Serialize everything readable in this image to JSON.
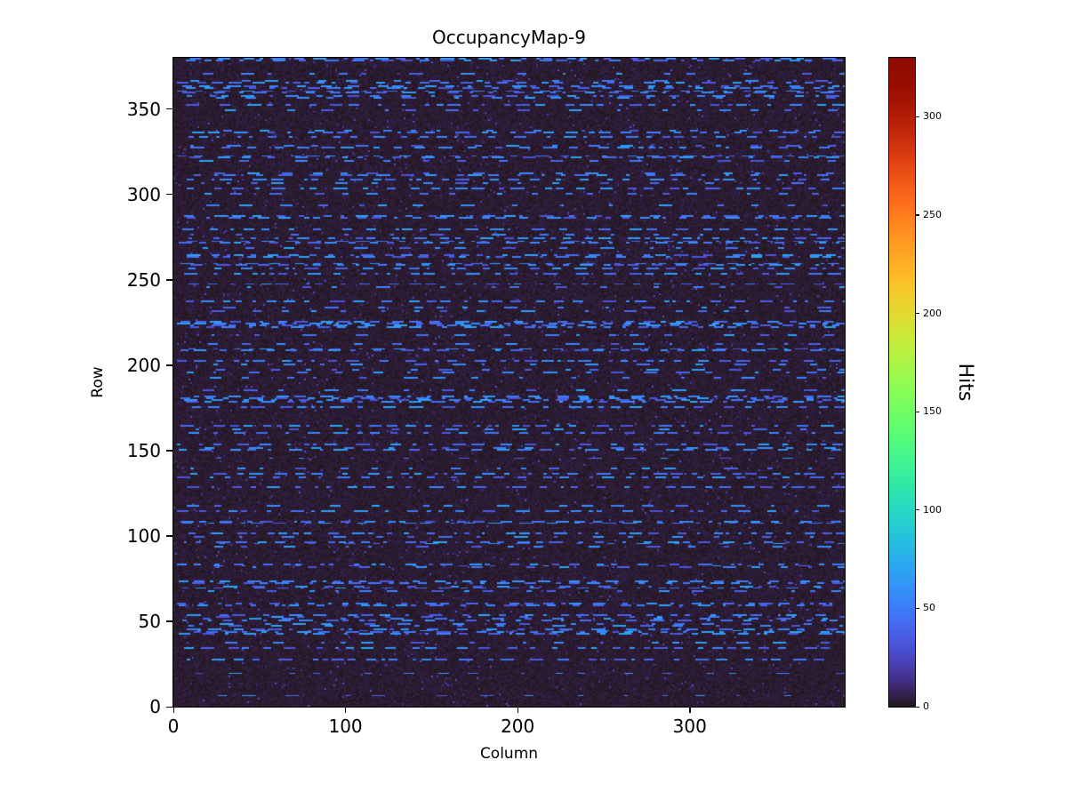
{
  "figure": {
    "background": "#ffffff"
  },
  "chart_data": {
    "type": "heatmap",
    "title": "OccupancyMap-9",
    "xlabel": "Column",
    "ylabel": "Row",
    "colorbar_label": "Hits",
    "colormap": "turbo",
    "x_range": [
      0,
      390
    ],
    "y_range": [
      0,
      380
    ],
    "value_range": [
      0,
      330
    ],
    "x_ticks": [
      0,
      100,
      200,
      300
    ],
    "y_ticks": [
      0,
      50,
      100,
      150,
      200,
      250,
      300,
      350
    ],
    "colorbar_ticks": [
      0,
      50,
      100,
      150,
      200,
      250,
      300
    ],
    "grid": false,
    "legend": "none",
    "colors": {
      "low_value": "#23171b",
      "dash_blue": "#3e7bf7",
      "high_value": "#900c00"
    },
    "description": "Detector occupancy map: a 390x380 pixel grid where most pixels have ~0 hits (dark purple), overlaid with many horizontal dashed streaks of pixels with roughly 30-70 hits (light blue). Color scale runs 0 to about 330 hits.",
    "pattern": {
      "seed": 9,
      "background_value_max": 5,
      "sparse_noise_probability": 0.015,
      "sparse_noise_value_max": 25,
      "dense_streak_row_probability": 0.18,
      "sparse_streak_row_probability": 0.14,
      "dash_value_min": 30,
      "dash_value_max": 70,
      "dash_length_min": 2,
      "dash_length_max": 8,
      "dense_gap_min": 2,
      "dense_gap_max": 12,
      "sparse_gap_min": 8,
      "sparse_gap_max": 30
    }
  }
}
